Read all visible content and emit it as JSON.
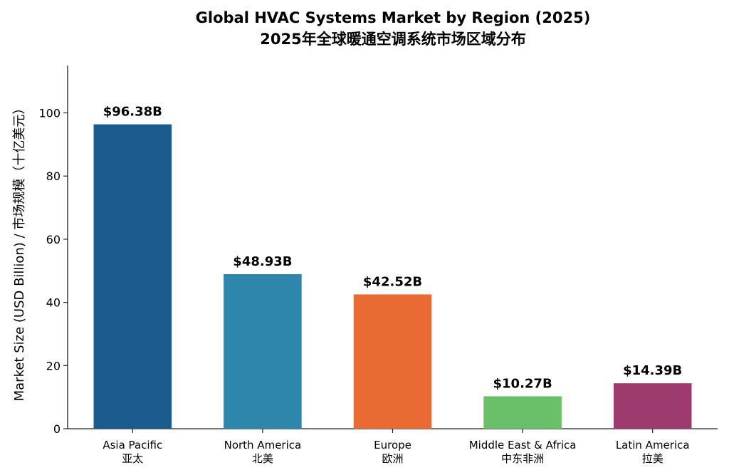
{
  "chart_data": {
    "type": "bar",
    "title": "Global HVAC Systems Market by Region (2025)",
    "subtitle": "2025年全球暖通空调系统市场区域分布",
    "ylabel": "Market Size (USD Billion) / 市场规模（十亿美元）",
    "xlabel": "",
    "ylim": [
      0,
      115
    ],
    "yticks": [
      0,
      20,
      40,
      60,
      80,
      100
    ],
    "grid": false,
    "categories": [
      {
        "en": "Asia Pacific",
        "zh": "亚太"
      },
      {
        "en": "North America",
        "zh": "北美"
      },
      {
        "en": "Europe",
        "zh": "欧洲"
      },
      {
        "en": "Middle East & Africa",
        "zh": "中东非洲"
      },
      {
        "en": "Latin America",
        "zh": "拉美"
      }
    ],
    "values": [
      96.38,
      48.93,
      42.52,
      10.27,
      14.39
    ],
    "value_labels": [
      "$96.38B",
      "$48.93B",
      "$42.52B",
      "$10.27B",
      "$14.39B"
    ],
    "colors": [
      "#1b5b8e",
      "#2e86ad",
      "#e96a33",
      "#6abf69",
      "#9e3b6e"
    ]
  }
}
